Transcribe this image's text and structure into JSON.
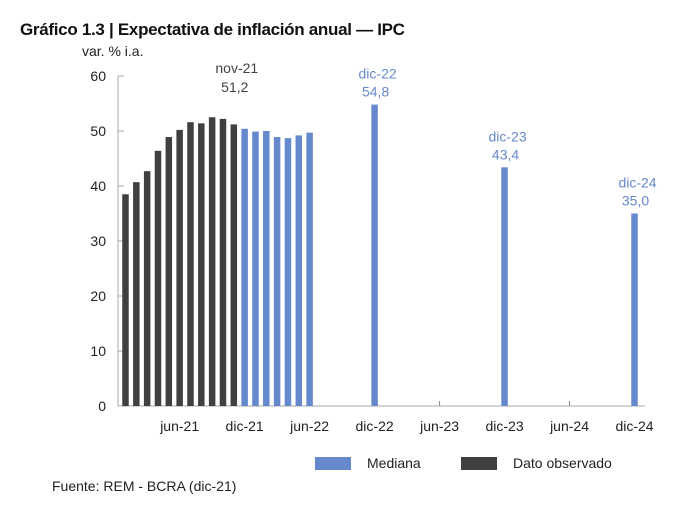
{
  "title": "Gráfico 1.3 | Expectativa de inflación anual — IPC",
  "source": "Fuente: REM - BCRA (dic-21)",
  "chart_data": {
    "type": "bar",
    "title": "Gráfico 1.3 | Expectativa de inflación anual — IPC",
    "ylabel": "var. % i.a.",
    "xlabel": "",
    "ylim": [
      0,
      60
    ],
    "yticks": [
      0,
      10,
      20,
      30,
      40,
      50,
      60
    ],
    "xticks": [
      "jun-21",
      "dic-21",
      "jun-22",
      "dic-22",
      "jun-23",
      "dic-23",
      "jun-24",
      "dic-24"
    ],
    "grid": false,
    "legend_position": "bottom",
    "series": [
      {
        "name": "Dato observado",
        "color": "#404040",
        "x": [
          "ene-21",
          "feb-21",
          "mar-21",
          "abr-21",
          "may-21",
          "jun-21",
          "jul-21",
          "ago-21",
          "sep-21",
          "oct-21",
          "nov-21"
        ],
        "values": [
          38.5,
          40.7,
          42.7,
          46.4,
          48.9,
          50.2,
          51.6,
          51.4,
          52.5,
          52.2,
          51.2
        ]
      },
      {
        "name": "Mediana",
        "color": "#6688cc",
        "x": [
          "dic-21",
          "ene-22",
          "feb-22",
          "mar-22",
          "abr-22",
          "may-22",
          "jun-22",
          "dic-22",
          "dic-23",
          "dic-24"
        ],
        "values": [
          50.4,
          49.9,
          50.0,
          48.9,
          48.7,
          49.2,
          49.7,
          54.8,
          43.4,
          35.0
        ]
      }
    ],
    "annotations": [
      {
        "x": "nov-21",
        "label": "nov-21",
        "value_label": "51,2",
        "color": "#444444"
      },
      {
        "x": "dic-22",
        "label": "dic-22",
        "value_label": "54,8",
        "color": "#6688cc"
      },
      {
        "x": "dic-23",
        "label": "dic-23",
        "value_label": "43,4",
        "color": "#6688cc"
      },
      {
        "x": "dic-24",
        "label": "dic-24",
        "value_label": "35,0",
        "color": "#6688cc"
      }
    ]
  }
}
